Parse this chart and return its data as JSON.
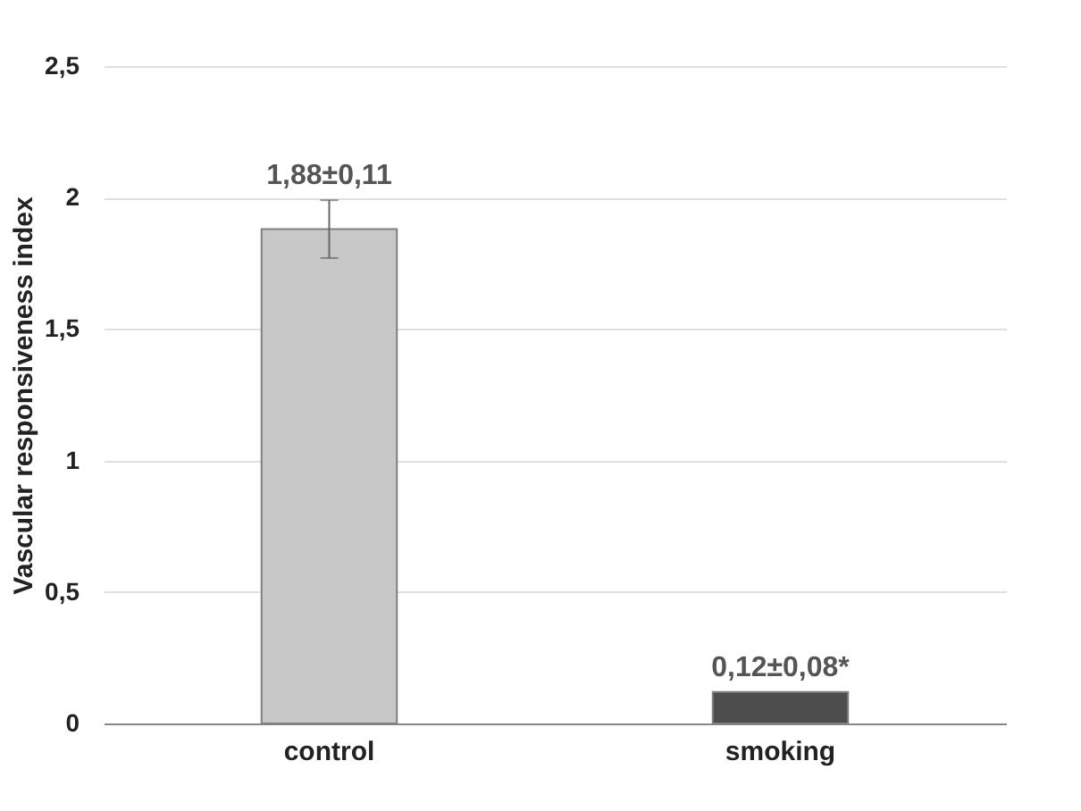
{
  "chart_data": {
    "type": "bar",
    "ylabel": "Vascular responsiveness index",
    "categories": [
      "control",
      "smoking"
    ],
    "values": [
      1.88,
      0.12
    ],
    "colors": [
      "#c8c8c8",
      "#4d4d4d"
    ],
    "errors": [
      0.11,
      null
    ],
    "value_labels": [
      "1,88±0,11",
      "0,12±0,08*"
    ],
    "ylim": [
      0,
      2.5
    ],
    "yticks": [
      0,
      {
        "value": 0.5,
        "label": "0,5"
      },
      1,
      {
        "value": 1.5,
        "label": "1,5"
      },
      2,
      {
        "value": 2.5,
        "label": "2,5"
      }
    ],
    "grid": "y"
  }
}
